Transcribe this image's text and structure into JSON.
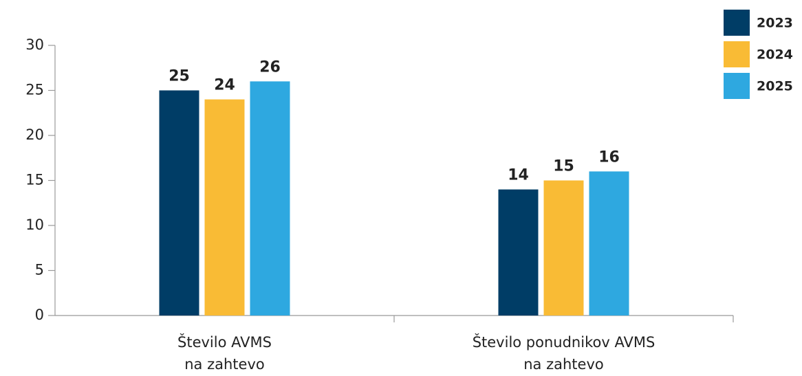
{
  "chart_data": {
    "type": "bar",
    "categories": [
      [
        "Število AVMS",
        "na zahtevo"
      ],
      [
        "Število ponudnikov AVMS",
        "na zahtevo"
      ]
    ],
    "series": [
      {
        "name": "2023",
        "color": "#003d66",
        "values": [
          25,
          14
        ]
      },
      {
        "name": "2024",
        "color": "#f9bb35",
        "values": [
          24,
          15
        ]
      },
      {
        "name": "2025",
        "color": "#2ea8e0",
        "values": [
          26,
          16
        ]
      }
    ],
    "ylim": [
      0,
      30
    ],
    "yticks": [
      0,
      5,
      10,
      15,
      20,
      25,
      30
    ],
    "legend": "top-right"
  }
}
